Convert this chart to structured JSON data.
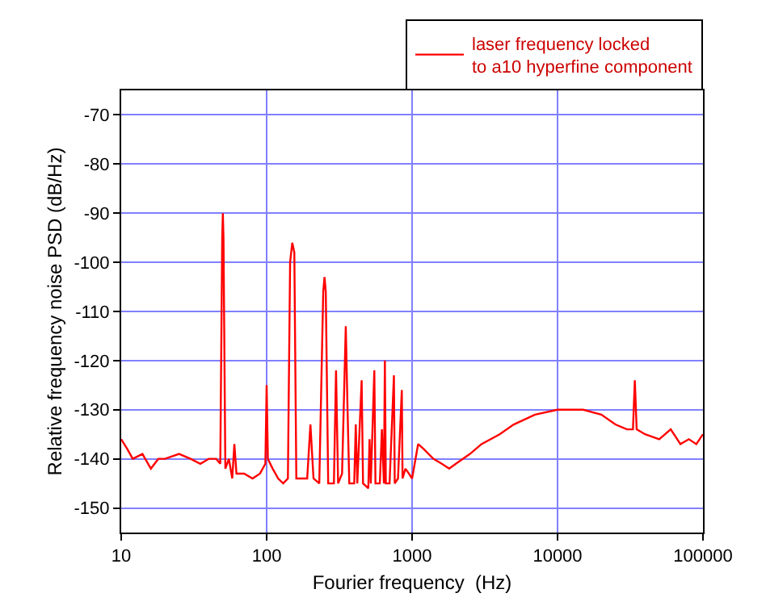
{
  "chart_data": {
    "type": "line",
    "xlabel": "Fourier frequency  (Hz)",
    "ylabel": "Relative frequency noise PSD (dB/Hz)",
    "log": "x",
    "grid": true,
    "legend": "top right",
    "xlim": [
      10,
      100000
    ],
    "xticks": [
      10,
      100,
      1000,
      10000,
      100000
    ],
    "ylim": [
      -155,
      -65
    ],
    "yticks": [
      -150,
      -140,
      -130,
      -120,
      -110,
      -100,
      -90,
      -80,
      -70
    ],
    "series": [
      {
        "name": "laser frequency locked\nto a10 hyperfine component",
        "color": "#ff0000",
        "x": [
          10,
          11,
          12,
          14,
          16,
          18,
          20,
          25,
          30,
          35,
          40,
          45,
          48,
          49.5,
          50,
          50.5,
          52,
          55,
          58,
          60,
          62,
          70,
          80,
          90,
          98,
          100,
          102,
          110,
          120,
          130,
          140,
          145,
          150,
          155,
          160,
          170,
          190,
          200,
          210,
          230,
          245,
          250,
          255,
          265,
          290,
          300,
          310,
          330,
          350,
          360,
          370,
          400,
          410,
          420,
          450,
          460,
          500,
          510,
          520,
          550,
          560,
          600,
          620,
          640,
          650,
          660,
          700,
          750,
          760,
          800,
          850,
          860,
          900,
          950,
          1000,
          1100,
          1200,
          1400,
          1600,
          1800,
          2000,
          2500,
          3000,
          4000,
          5000,
          7000,
          10000,
          15000,
          20000,
          25000,
          30000,
          33000,
          34000,
          35000,
          40000,
          50000,
          60000,
          70000,
          80000,
          90000,
          100000
        ],
        "values": [
          -136,
          -138,
          -140,
          -139,
          -142,
          -140,
          -140,
          -139,
          -140,
          -141,
          -140,
          -140,
          -141,
          -95,
          -90,
          -95,
          -142,
          -140,
          -144,
          -137,
          -143,
          -143,
          -144,
          -143,
          -141,
          -125,
          -140,
          -142,
          -144,
          -145,
          -144,
          -100,
          -96,
          -98,
          -144,
          -144,
          -144,
          -133,
          -144,
          -145,
          -106,
          -103,
          -106,
          -145,
          -145,
          -122,
          -145,
          -143,
          -113,
          -130,
          -145,
          -145,
          -133,
          -145,
          -124,
          -145,
          -146,
          -136,
          -145,
          -122,
          -145,
          -145,
          -134,
          -145,
          -120,
          -145,
          -145,
          -123,
          -145,
          -144,
          -126,
          -144,
          -142,
          -143,
          -144,
          -137,
          -138,
          -140,
          -141,
          -142,
          -141,
          -139,
          -137,
          -135,
          -133,
          -131,
          -130,
          -130,
          -131,
          -133,
          -134,
          -134,
          -124,
          -134,
          -135,
          -136,
          -134,
          -137,
          -136,
          -137,
          -135
        ]
      }
    ]
  }
}
